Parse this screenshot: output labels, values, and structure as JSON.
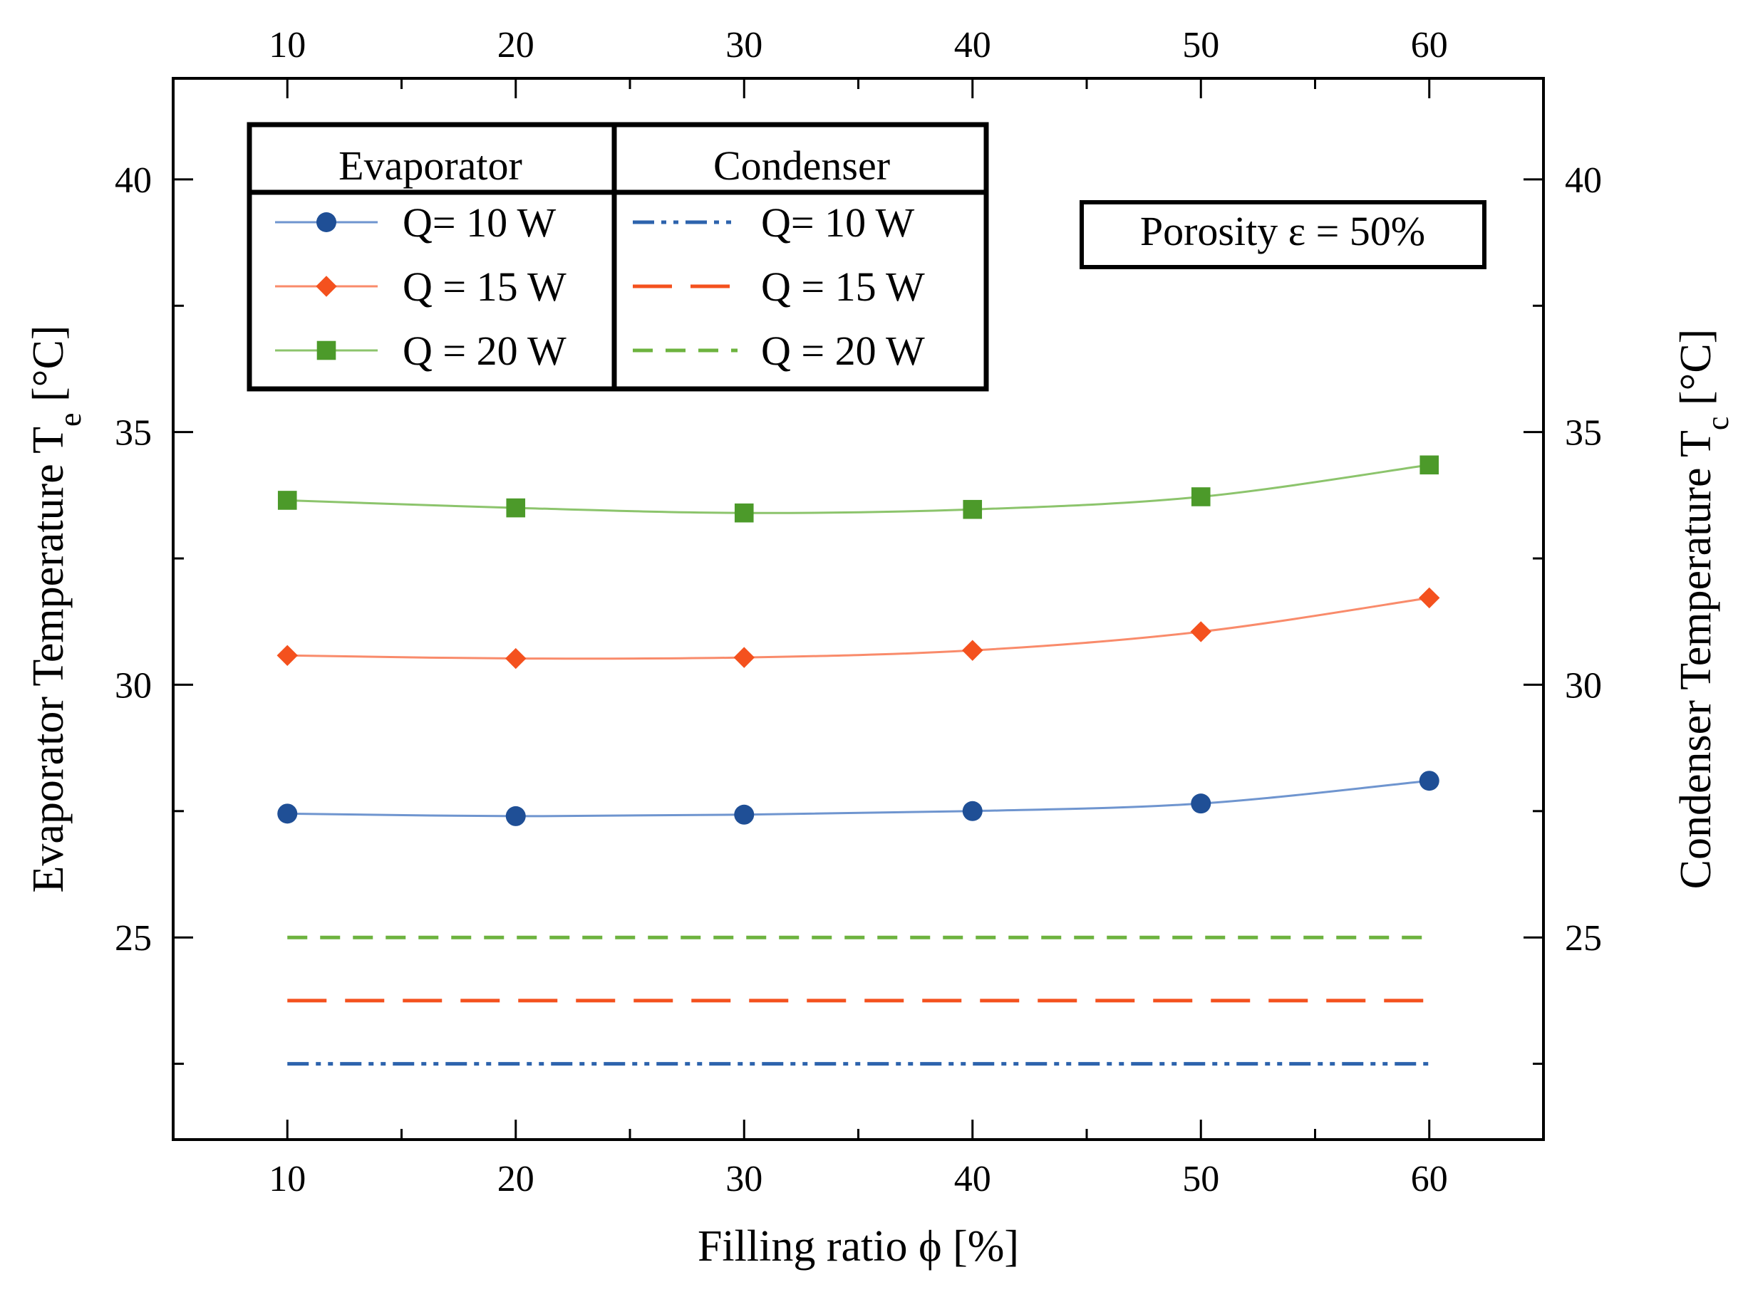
{
  "chart_data": {
    "type": "line",
    "title": "",
    "xlabel": "Filling ratio ϕ [%]",
    "ylabel_left": {
      "main": "Evaporator Temperature T",
      "sub": "e",
      "unit": " [°C]"
    },
    "ylabel_right": {
      "main": "Condenser Temperature T",
      "sub": "c",
      "unit": " [°C]"
    },
    "xlim": [
      5,
      65
    ],
    "ylim": [
      21,
      42
    ],
    "x_ticks": [
      10,
      20,
      30,
      40,
      50,
      60
    ],
    "y_ticks": [
      25,
      30,
      35,
      40
    ],
    "x": [
      10,
      20,
      30,
      40,
      50,
      60
    ],
    "series": [
      {
        "name": "Evaporator Q= 10 W",
        "group": "evaporator",
        "color": "#1f4f96",
        "line_color": "#6f95cf",
        "marker": "circle",
        "values": [
          27.45,
          27.4,
          27.43,
          27.5,
          27.65,
          28.1
        ]
      },
      {
        "name": "Evaporator Q = 15 W",
        "group": "evaporator",
        "color": "#f4511e",
        "line_color": "#f98b6b",
        "marker": "diamond",
        "values": [
          30.58,
          30.52,
          30.54,
          30.68,
          31.05,
          31.72
        ]
      },
      {
        "name": "Evaporator Q = 20 W",
        "group": "evaporator",
        "color": "#4c9a2a",
        "line_color": "#8cc46c",
        "marker": "square",
        "values": [
          33.65,
          33.5,
          33.4,
          33.47,
          33.72,
          34.35
        ]
      },
      {
        "name": "Condenser Q= 10 W",
        "group": "condenser",
        "color": "#2d63ad",
        "dash": "dash-dot-dot",
        "values": [
          22.5,
          22.5,
          22.5,
          22.5,
          22.5,
          22.5
        ]
      },
      {
        "name": "Condenser Q = 15 W",
        "group": "condenser",
        "color": "#f4511e",
        "dash": "long-dash",
        "values": [
          23.75,
          23.75,
          23.75,
          23.75,
          23.75,
          23.75
        ]
      },
      {
        "name": "Condenser Q = 20 W",
        "group": "condenser",
        "color": "#6db33f",
        "dash": "dash",
        "values": [
          25.0,
          25.0,
          25.0,
          25.0,
          25.0,
          25.0
        ]
      }
    ],
    "legend": {
      "placement": "top-left",
      "headers": [
        "Evaporator",
        "Condenser"
      ],
      "evaporator_labels": [
        "Q= 10 W",
        "Q = 15 W",
        "Q = 20 W"
      ],
      "condenser_labels": [
        "Q= 10 W",
        "Q = 15 W",
        "Q = 20 W"
      ]
    },
    "annotation": "Porosity ε = 50%"
  }
}
